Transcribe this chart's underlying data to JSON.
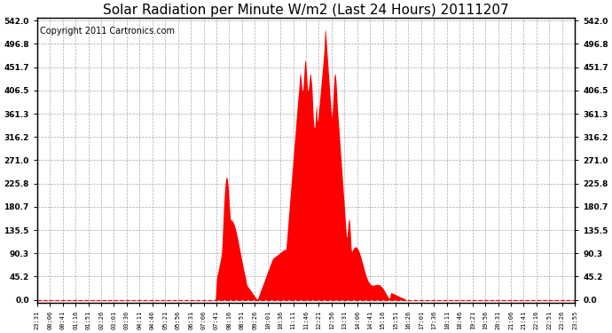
{
  "title": "Solar Radiation per Minute W/m2 (Last 24 Hours) 20111207",
  "copyright": "Copyright 2011 Cartronics.com",
  "yticks": [
    0.0,
    45.2,
    90.3,
    135.5,
    180.7,
    225.8,
    271.0,
    316.2,
    361.3,
    406.5,
    451.7,
    496.8,
    542.0
  ],
  "ymax": 542.0,
  "ymin": 0.0,
  "fill_color": "#ff0000",
  "background_color": "#ffffff",
  "grid_color": "#aaaaaa",
  "zero_line_color": "#ff0000",
  "border_color": "#000000",
  "title_fontsize": 11,
  "copyright_fontsize": 7,
  "xtick_labels": [
    "23:31",
    "00:06",
    "00:41",
    "01:16",
    "01:51",
    "02:26",
    "03:01",
    "03:36",
    "04:11",
    "04:46",
    "05:21",
    "05:56",
    "06:31",
    "07:06",
    "07:41",
    "08:16",
    "08:51",
    "09:26",
    "10:01",
    "10:36",
    "11:11",
    "11:46",
    "12:21",
    "12:56",
    "13:31",
    "14:06",
    "14:41",
    "15:16",
    "15:51",
    "16:26",
    "17:01",
    "17:36",
    "18:11",
    "18:46",
    "19:21",
    "19:56",
    "20:31",
    "21:06",
    "21:41",
    "22:16",
    "22:51",
    "23:26",
    "23:55"
  ]
}
